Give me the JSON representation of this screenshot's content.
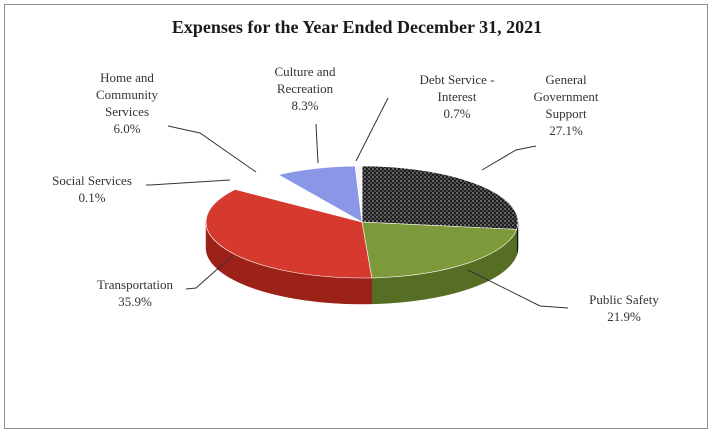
{
  "chart_data": {
    "type": "pie",
    "title": "Expenses for the Year Ended December 31, 2021",
    "slices": [
      {
        "lines": [
          "General",
          "Government",
          "Support"
        ],
        "pct": "27.1%",
        "value": 27.1,
        "color": "#2a2a2a",
        "side": "#111111",
        "pattern": "dots"
      },
      {
        "lines": [
          "Public Safety"
        ],
        "pct": "21.9%",
        "value": 21.9,
        "color": "#7d9a3a",
        "side": "#566d24"
      },
      {
        "lines": [
          "Transportation"
        ],
        "pct": "35.9%",
        "value": 35.9,
        "color": "#d63a2f",
        "side": "#9c2219"
      },
      {
        "lines": [
          "Social Services"
        ],
        "pct": "0.1%",
        "value": 0.1,
        "color": "#ffffff",
        "side": "#dddddd"
      },
      {
        "lines": [
          "Home and",
          "Community",
          "Services"
        ],
        "pct": "6.0%",
        "value": 6.0,
        "color": "#ffffff",
        "side": "#dddddd"
      },
      {
        "lines": [
          "Culture and",
          "Recreation"
        ],
        "pct": "8.3%",
        "value": 8.3,
        "color": "#8a97e6",
        "side": "#5b67b8"
      },
      {
        "lines": [
          "Debt Service -",
          "Interest"
        ],
        "pct": "0.7%",
        "value": 0.7,
        "color": "#f4f4f4",
        "side": "#cccccc"
      }
    ]
  }
}
